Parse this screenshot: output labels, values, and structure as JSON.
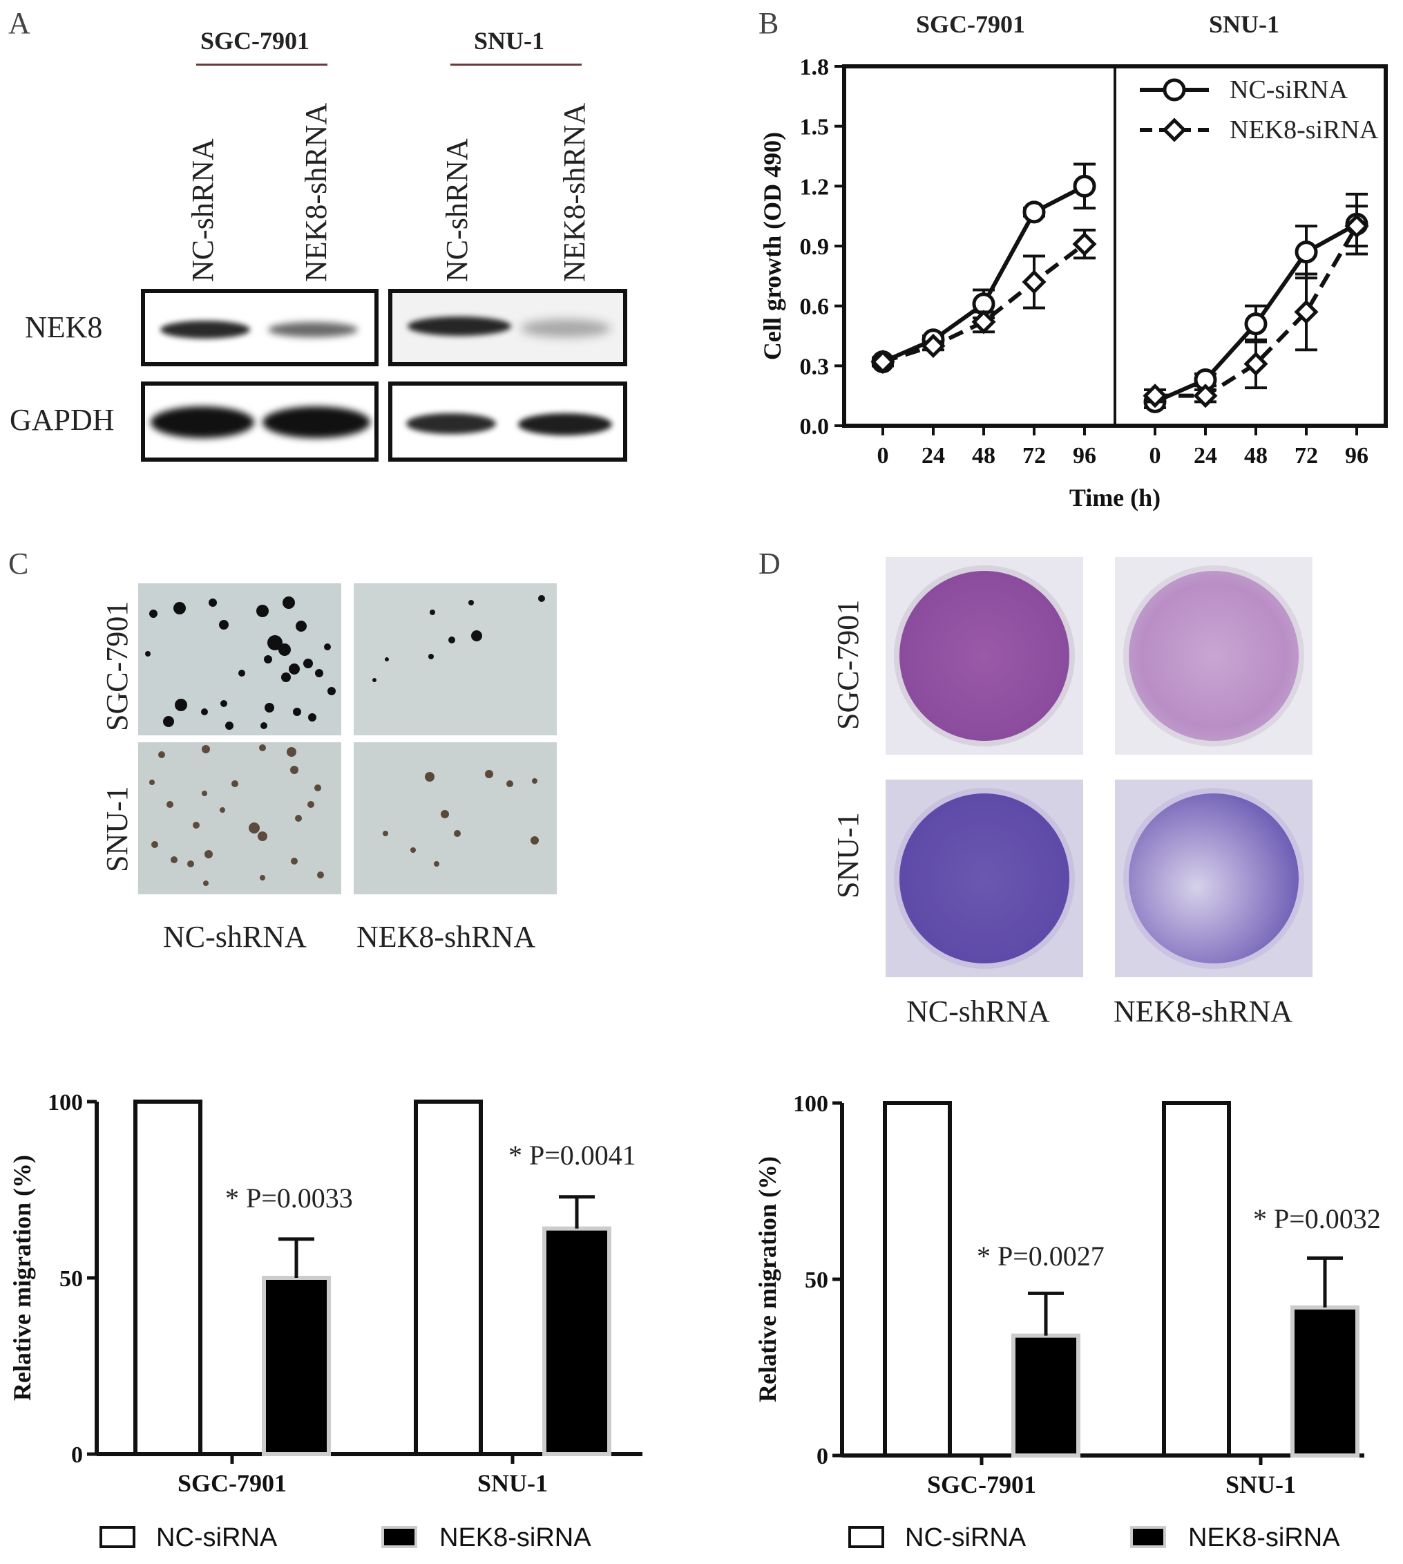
{
  "panelA": {
    "letter": "A",
    "groups": [
      "SGC-7901",
      "SNU-1"
    ],
    "lanes": [
      "NC-shRNA",
      "NEK8-shRNA",
      "NC-shRNA",
      "NEK8-shRNA"
    ],
    "rows": [
      "NEK8",
      "GAPDH"
    ]
  },
  "panelB": {
    "letter": "B",
    "groups": [
      "SGC-7901",
      "SNU-1"
    ],
    "legend": [
      "NC-siRNA",
      "NEK8-siRNA"
    ]
  },
  "panelC": {
    "letter": "C",
    "rows": [
      "SGC-7901",
      "SNU-1"
    ],
    "cols": [
      "NC-shRNA",
      "NEK8-shRNA"
    ]
  },
  "panelD": {
    "letter": "D",
    "rows": [
      "SGC-7901",
      "SNU-1"
    ],
    "cols": [
      "NC-shRNA",
      "NEK8-shRNA"
    ]
  },
  "bottomLeft": {
    "p1": "* P=0.0033",
    "p2": "* P=0.0041",
    "legend": [
      "NC-siRNA",
      "NEK8-siRNA"
    ]
  },
  "bottomRight": {
    "p1": "* P=0.0027",
    "p2": "* P=0.0032",
    "legend": [
      "NC-siRNA",
      "NEK8-siRNA"
    ]
  },
  "chart_data": [
    {
      "type": "line",
      "panel": "B",
      "xlabel": "Time (h)",
      "ylabel": "Cell growth (OD 490)",
      "ylim": [
        0,
        1.8
      ],
      "yticks": [
        "0.0",
        "0.3",
        "0.6",
        "0.9",
        "1.2",
        "1.5",
        "1.8"
      ],
      "subplots": [
        {
          "title": "SGC-7901",
          "x": [
            0,
            24,
            48,
            72,
            96
          ],
          "series": [
            {
              "name": "NC-siRNA",
              "values": [
                0.32,
                0.43,
                0.61,
                1.07,
                1.2
              ],
              "errors": [
                0.02,
                0.02,
                0.07,
                0.02,
                0.11
              ]
            },
            {
              "name": "NEK8-siRNA",
              "values": [
                0.32,
                0.4,
                0.52,
                0.72,
                0.91
              ],
              "errors": [
                0.02,
                0.02,
                0.05,
                0.13,
                0.07
              ]
            }
          ]
        },
        {
          "title": "SNU-1",
          "x": [
            0,
            24,
            48,
            72,
            96
          ],
          "series": [
            {
              "name": "NC-siRNA",
              "values": [
                0.12,
                0.23,
                0.51,
                0.87,
                1.01
              ],
              "errors": [
                0.03,
                0.03,
                0.09,
                0.13,
                0.15
              ]
            },
            {
              "name": "NEK8-siRNA",
              "values": [
                0.15,
                0.15,
                0.31,
                0.57,
                1.0
              ],
              "errors": [
                0.03,
                0.03,
                0.12,
                0.19,
                0.1
              ]
            }
          ]
        }
      ]
    },
    {
      "type": "bar",
      "panel": "bottom-left",
      "categories": [
        "SGC-7901",
        "SNU-1"
      ],
      "ylabel": "Relative migration (%)",
      "ylim": [
        0,
        100
      ],
      "yticks": [
        "0",
        "50",
        "100"
      ],
      "series": [
        {
          "name": "NC-siRNA",
          "values": [
            100,
            100
          ]
        },
        {
          "name": "NEK8-siRNA",
          "values": [
            50,
            64
          ],
          "errors": [
            11,
            9
          ]
        }
      ]
    },
    {
      "type": "bar",
      "panel": "bottom-right",
      "categories": [
        "SGC-7901",
        "SNU-1"
      ],
      "ylabel": "Relative migration (%)",
      "ylim": [
        0,
        100
      ],
      "yticks": [
        "0",
        "50",
        "100"
      ],
      "series": [
        {
          "name": "NC-siRNA",
          "values": [
            100,
            100
          ]
        },
        {
          "name": "NEK8-siRNA",
          "values": [
            34,
            42
          ],
          "errors": [
            12,
            14
          ]
        }
      ]
    }
  ]
}
